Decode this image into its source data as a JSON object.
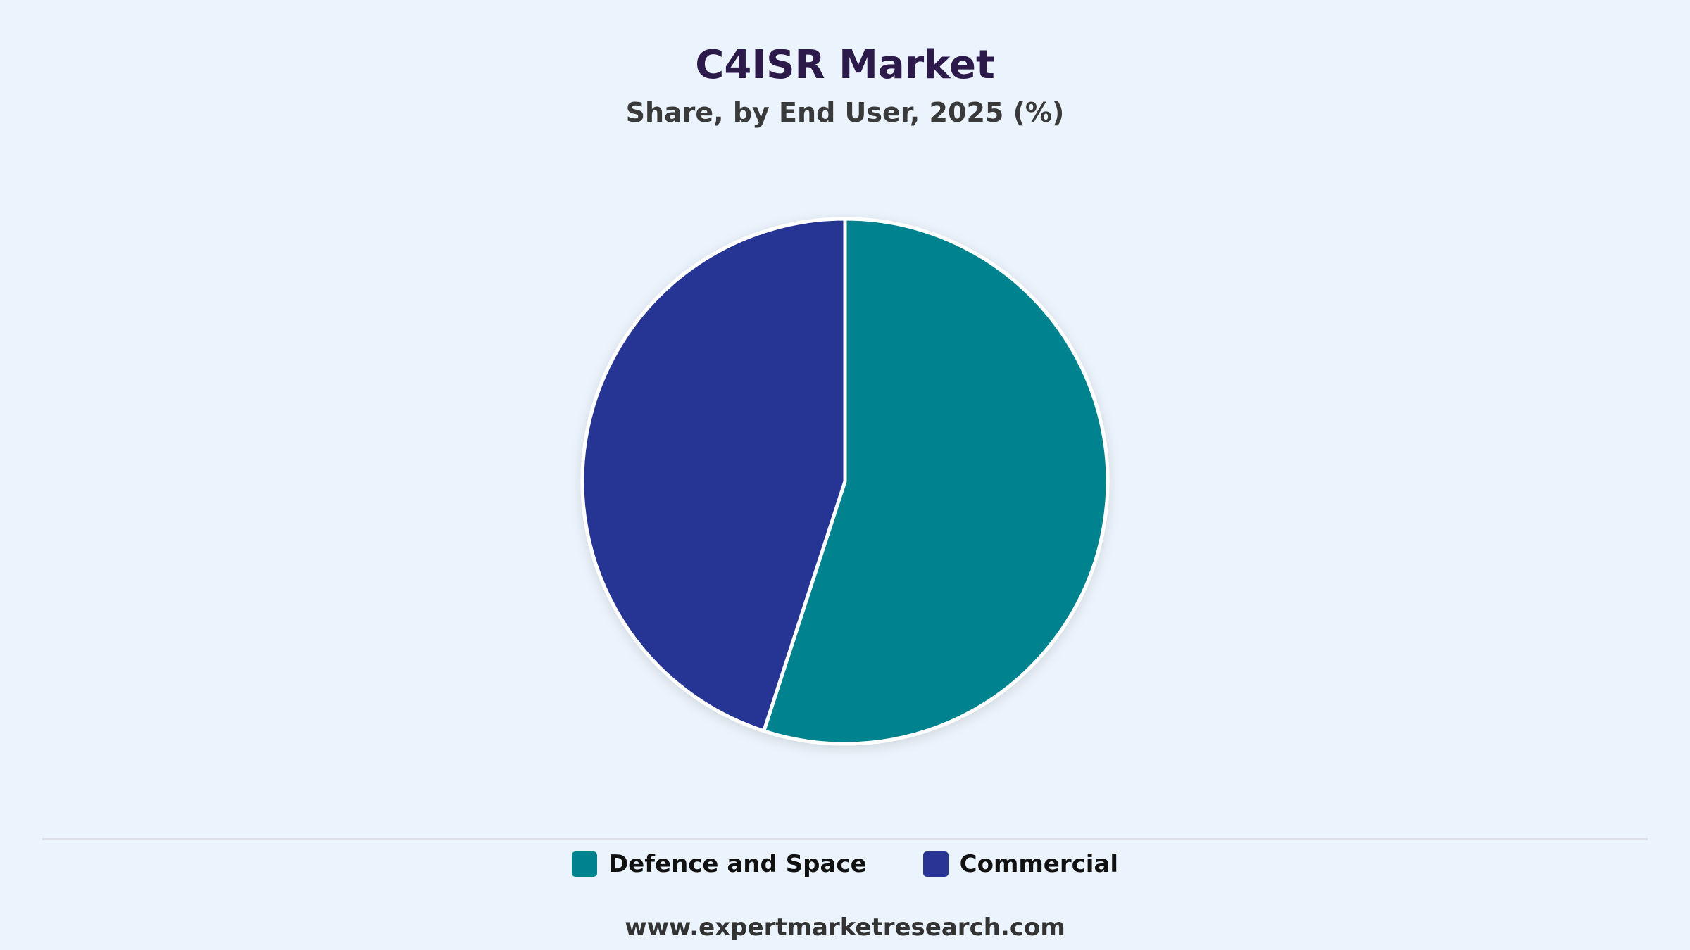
{
  "chart_data": {
    "type": "pie",
    "title": "C4ISR Market",
    "subtitle": "Share, by End User, 2025 (%)",
    "categories": [
      "Defence and Space",
      "Commercial"
    ],
    "values": [
      55,
      45
    ],
    "colors": [
      "#00838f",
      "#283593"
    ],
    "start_angle_deg": 0,
    "direction": "clockwise",
    "legend_position": "bottom"
  },
  "footer": {
    "source": "www.expertmarketresearch.com"
  }
}
